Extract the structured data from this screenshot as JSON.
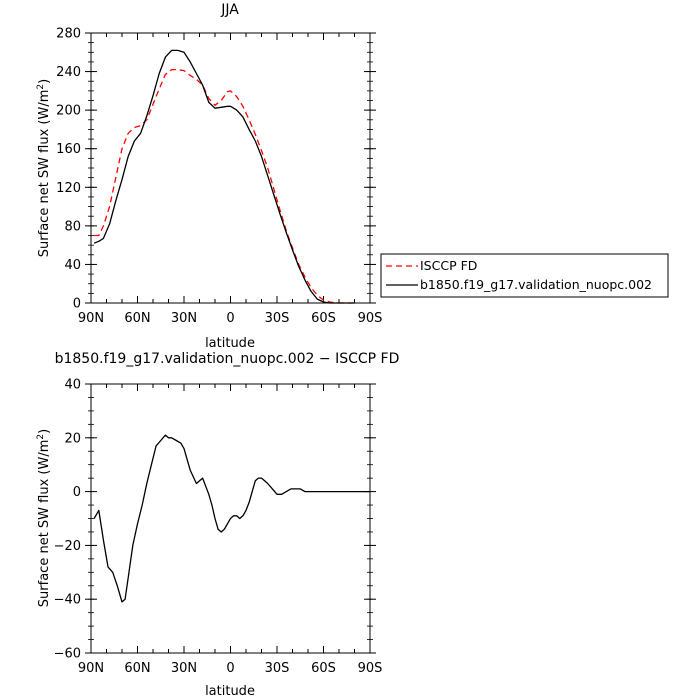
{
  "chart_data": [
    {
      "type": "line",
      "title": "JJA",
      "xlabel": "latitude",
      "ylabel_main": "Surface net SW flux (W/m",
      "ylabel_sup": "2",
      "ylabel_end": ")",
      "xlim": [
        90,
        -90
      ],
      "ylim": [
        0,
        280
      ],
      "x_ticks": [
        90,
        60,
        30,
        0,
        -30,
        -60,
        -90
      ],
      "x_tick_labels": [
        "90N",
        "60N",
        "30N",
        "0",
        "30S",
        "60S",
        "90S"
      ],
      "y_ticks": [
        0,
        40,
        80,
        120,
        160,
        200,
        240,
        280
      ],
      "y_tick_labels": [
        "0",
        "40",
        "80",
        "120",
        "160",
        "200",
        "240",
        "280"
      ],
      "legend_position": "right",
      "series": [
        {
          "name": "ISCCP FD",
          "color": "#ff0000",
          "dash": "dashed",
          "x": [
            88,
            85,
            82,
            78,
            74,
            70,
            66,
            62,
            58,
            54,
            50,
            46,
            42,
            38,
            34,
            30,
            26,
            22,
            18,
            14,
            10,
            6,
            2,
            0,
            -4,
            -8,
            -12,
            -16,
            -20,
            -24,
            -28,
            -32,
            -36,
            -40,
            -44,
            -48,
            -52,
            -56,
            -60,
            -64,
            -68,
            -72,
            -76,
            -80
          ],
          "y": [
            70,
            70,
            80,
            100,
            130,
            160,
            176,
            182,
            184,
            190,
            206,
            222,
            237,
            242,
            242,
            241,
            236,
            232,
            226,
            212,
            205,
            210,
            219,
            220,
            214,
            204,
            190,
            175,
            158,
            140,
            118,
            96,
            75,
            57,
            40,
            27,
            16,
            8,
            3,
            1,
            0,
            0,
            0,
            0
          ]
        },
        {
          "name": "b1850.f19_g17.validation_nuopc.002",
          "color": "#000000",
          "dash": "solid",
          "x": [
            88,
            85,
            82,
            78,
            74,
            70,
            66,
            62,
            58,
            54,
            50,
            46,
            42,
            38,
            34,
            30,
            26,
            22,
            18,
            14,
            10,
            6,
            2,
            0,
            -4,
            -8,
            -12,
            -16,
            -20,
            -24,
            -28,
            -32,
            -36,
            -40,
            -44,
            -48,
            -52,
            -56,
            -60,
            -64,
            -68,
            -72,
            -76,
            -80
          ],
          "y": [
            62,
            64,
            67,
            82,
            106,
            128,
            152,
            168,
            176,
            194,
            215,
            238,
            255,
            262,
            262,
            260,
            250,
            238,
            226,
            208,
            202,
            203,
            204,
            204,
            200,
            193,
            180,
            168,
            152,
            132,
            112,
            92,
            73,
            55,
            38,
            24,
            12,
            4,
            1,
            0,
            0,
            0,
            0,
            0
          ]
        }
      ]
    },
    {
      "type": "line",
      "title": "b1850.f19_g17.validation_nuopc.002 − ISCCP FD",
      "xlabel": "latitude",
      "ylabel_main": "Surface net SW flux (W/m",
      "ylabel_sup": "2",
      "ylabel_end": ")",
      "xlim": [
        90,
        -90
      ],
      "ylim": [
        -60,
        40
      ],
      "x_ticks": [
        90,
        60,
        30,
        0,
        -30,
        -60,
        -90
      ],
      "x_tick_labels": [
        "90N",
        "60N",
        "30N",
        "0",
        "30S",
        "60S",
        "90S"
      ],
      "y_ticks": [
        -60,
        -40,
        -20,
        0,
        20,
        40
      ],
      "y_tick_labels": [
        "−60",
        "−40",
        "−20",
        "0",
        "20",
        "40"
      ],
      "series": [
        {
          "color": "#000000",
          "x": [
            88,
            85,
            82,
            79,
            76,
            73,
            70,
            68,
            66,
            63,
            60,
            57,
            54,
            51,
            48,
            45,
            42,
            40,
            38,
            35,
            32,
            30,
            26,
            22,
            18,
            14,
            12,
            10,
            8,
            6,
            4,
            2,
            0,
            -2,
            -4,
            -6,
            -8,
            -10,
            -12,
            -14,
            -16,
            -18,
            -20,
            -22,
            -24,
            -27,
            -30,
            -33,
            -36,
            -39,
            -42,
            -45,
            -48,
            -51,
            -54,
            -57,
            -60,
            -63,
            -66,
            -69,
            -72,
            -75,
            -78,
            -81,
            -84,
            -87,
            -90
          ],
          "y": [
            -10,
            -7,
            -18,
            -28,
            -30,
            -35,
            -41,
            -40,
            -32,
            -20,
            -12,
            -5,
            3,
            10,
            17,
            19,
            21,
            20,
            20,
            19,
            18,
            16,
            8,
            3,
            5,
            -1,
            -5,
            -10,
            -14,
            -15,
            -14,
            -12,
            -10,
            -9,
            -9,
            -10,
            -9,
            -7,
            -4,
            0,
            4,
            5,
            5,
            4,
            3,
            1,
            -1,
            -1,
            0,
            1,
            1,
            1,
            0,
            0,
            0,
            0,
            0,
            0,
            0,
            0,
            0,
            0,
            0,
            0,
            0,
            0,
            0
          ]
        }
      ]
    }
  ],
  "legend": {
    "labels": [
      "ISCCP FD",
      "b1850.f19_g17.validation_nuopc.002"
    ]
  }
}
